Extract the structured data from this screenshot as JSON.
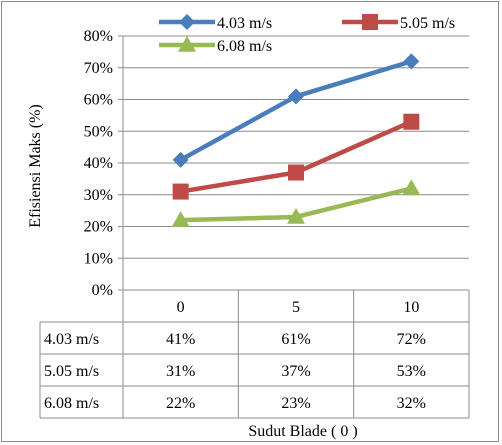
{
  "chart_data": {
    "type": "line",
    "ylabel": "Efisiensi Maks (%)",
    "xlabel": "Sudut  Blade ( 0 )",
    "categories": [
      "0",
      "5",
      "10"
    ],
    "ylim": [
      0,
      80
    ],
    "yticks": [
      "0%",
      "10%",
      "20%",
      "30%",
      "40%",
      "50%",
      "60%",
      "70%",
      "80%"
    ],
    "grid": "horizontal",
    "legend_position": "top",
    "data_table": true,
    "series": [
      {
        "name": "4.03 m/s",
        "values": [
          41,
          61,
          72
        ],
        "labels": [
          "41%",
          "61%",
          "72%"
        ],
        "color": "#4a7ebb",
        "marker": "diamond"
      },
      {
        "name": "5.05 m/s",
        "values": [
          31,
          37,
          53
        ],
        "labels": [
          "31%",
          "37%",
          "53%"
        ],
        "color": "#be4b48",
        "marker": "square"
      },
      {
        "name": "6.08 m/s",
        "values": [
          22,
          23,
          32
        ],
        "labels": [
          "22%",
          "23%",
          "32%"
        ],
        "color": "#98b954",
        "marker": "triangle"
      }
    ]
  }
}
